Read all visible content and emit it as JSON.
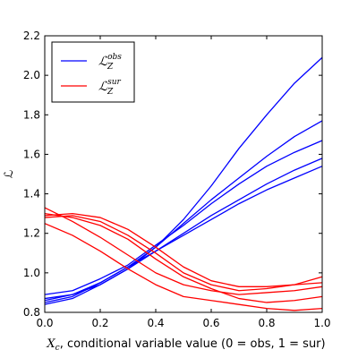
{
  "chart_data": {
    "type": "line",
    "title": "",
    "xlabel_var": "X",
    "xlabel_sub": "c",
    "xlabel_text": ", conditional variable value (0 = obs, 1 = sur)",
    "ylabel": "ℒ",
    "xlim": [
      0.0,
      1.0
    ],
    "ylim": [
      0.8,
      2.2
    ],
    "xticks": [
      "0.0",
      "0.2",
      "0.4",
      "0.6",
      "0.8",
      "1.0"
    ],
    "yticks": [
      "0.8",
      "1.0",
      "1.2",
      "1.4",
      "1.6",
      "1.8",
      "2.0",
      "2.2"
    ],
    "legend_placement": "top-left",
    "legend": [
      {
        "symbol": "ℒ",
        "sub": "Z",
        "sup": "obs",
        "color": "#0000ff"
      },
      {
        "symbol": "ℒ",
        "sub": "Z",
        "sup": "sur",
        "color": "#ff0000"
      }
    ],
    "x": [
      0.0,
      0.1,
      0.2,
      0.3,
      0.4,
      0.5,
      0.6,
      0.7,
      0.8,
      0.9,
      1.0
    ],
    "series": [
      {
        "group": "obs",
        "color": "#0000ff",
        "values": [
          0.87,
          0.89,
          0.94,
          1.02,
          1.13,
          1.27,
          1.44,
          1.63,
          1.8,
          1.96,
          2.09
        ]
      },
      {
        "group": "obs",
        "color": "#0000ff",
        "values": [
          0.86,
          0.89,
          0.95,
          1.03,
          1.13,
          1.25,
          1.37,
          1.48,
          1.59,
          1.69,
          1.77
        ]
      },
      {
        "group": "obs",
        "color": "#0000ff",
        "values": [
          0.89,
          0.91,
          0.97,
          1.04,
          1.14,
          1.24,
          1.35,
          1.45,
          1.54,
          1.61,
          1.67
        ]
      },
      {
        "group": "obs",
        "color": "#0000ff",
        "values": [
          0.84,
          0.87,
          0.94,
          1.02,
          1.11,
          1.2,
          1.29,
          1.37,
          1.45,
          1.52,
          1.58
        ]
      },
      {
        "group": "obs",
        "color": "#0000ff",
        "values": [
          0.85,
          0.88,
          0.95,
          1.03,
          1.11,
          1.19,
          1.27,
          1.35,
          1.42,
          1.48,
          1.54
        ]
      },
      {
        "group": "sur",
        "color": "#ff0000",
        "values": [
          1.33,
          1.26,
          1.18,
          1.09,
          1.0,
          0.94,
          0.91,
          0.89,
          0.9,
          0.91,
          0.93
        ]
      },
      {
        "group": "sur",
        "color": "#ff0000",
        "values": [
          1.29,
          1.3,
          1.28,
          1.22,
          1.13,
          1.03,
          0.96,
          0.93,
          0.93,
          0.94,
          0.95
        ]
      },
      {
        "group": "sur",
        "color": "#ff0000",
        "values": [
          1.28,
          1.29,
          1.26,
          1.19,
          1.1,
          1.0,
          0.94,
          0.91,
          0.92,
          0.94,
          0.98
        ]
      },
      {
        "group": "sur",
        "color": "#ff0000",
        "values": [
          1.3,
          1.28,
          1.24,
          1.17,
          1.07,
          0.98,
          0.92,
          0.87,
          0.85,
          0.86,
          0.88
        ]
      },
      {
        "group": "sur",
        "color": "#ff0000",
        "values": [
          1.25,
          1.19,
          1.11,
          1.02,
          0.94,
          0.88,
          0.86,
          0.84,
          0.82,
          0.81,
          0.82
        ]
      }
    ]
  }
}
